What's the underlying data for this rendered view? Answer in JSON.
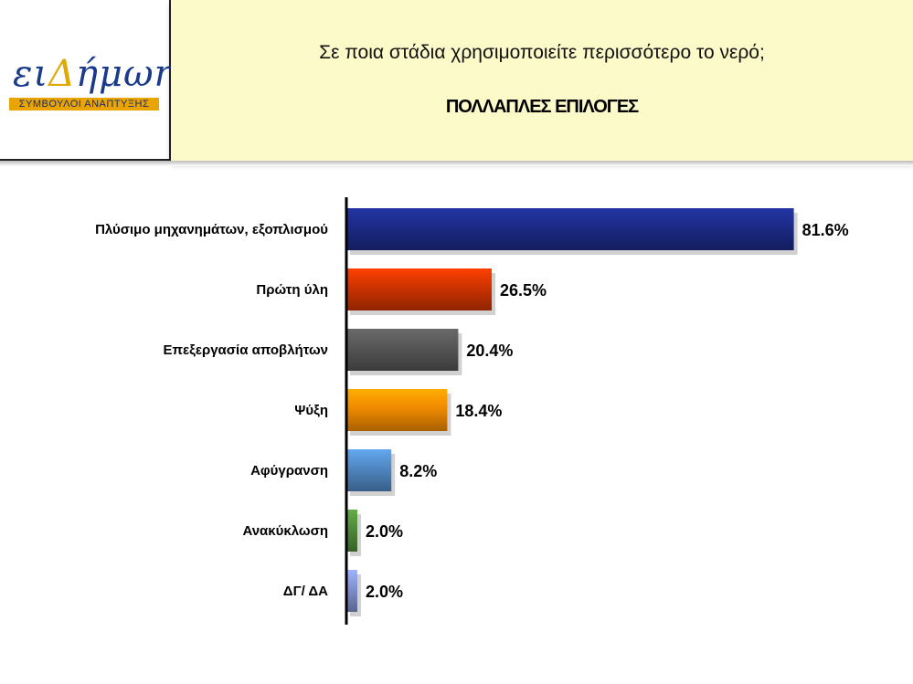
{
  "logo": {
    "word_main": "ει",
    "word_gold": "Δ",
    "word_rest": "ήμωr",
    "tagline": "ΣΥΜΒΟΥΛΟΙ ΑΝΑΠΤΥΞΗΣ"
  },
  "header": {
    "question": "Σε ποια στάδια χρησιμοποιείτε περισσότερο το νερό;",
    "subtitle": "ΠΟΛΛΑΠΛΕΣ ΕΠΙΛΟΓΕΣ"
  },
  "chart_data": {
    "type": "bar",
    "orientation": "horizontal",
    "categories": [
      "Πλύσιμο μηχανημάτων, εξοπλισμού",
      "Πρώτη ύλη",
      "Επεξεργασία αποβλήτων",
      "Ψύξη",
      "Αφύγρανση",
      "Ανακύκλωση",
      "ΔΓ/ ΔΑ"
    ],
    "values": [
      81.6,
      26.5,
      20.4,
      18.4,
      8.2,
      2.0,
      2.0
    ],
    "value_labels": [
      "81.6%",
      "26.5%",
      "20.4%",
      "18.4%",
      "8.2%",
      "2.0%",
      "2.0%"
    ],
    "colors": [
      "#1c2a85",
      "#cc3300",
      "#555555",
      "#f08a00",
      "#4f86c0",
      "#4e8a3a",
      "#7f8fcc"
    ],
    "xlim": [
      0,
      100
    ],
    "grid": false
  }
}
